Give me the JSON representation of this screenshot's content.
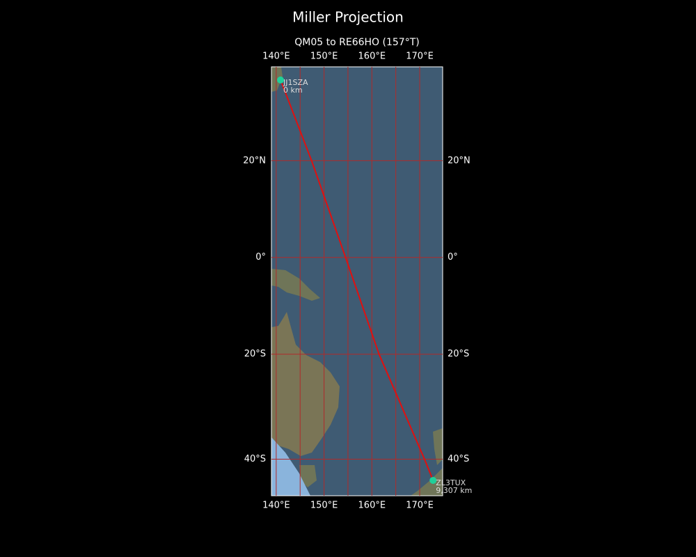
{
  "chart_data": {
    "type": "map",
    "title": "Miller Projection",
    "subtitle": "QM05 to RE66HO (157°T)",
    "projection": "miller",
    "xlim": [
      139,
      174.8
    ],
    "ylim": [
      -46.3,
      38
    ],
    "xticks": [
      {
        "value": 140,
        "label": "140°E"
      },
      {
        "value": 150,
        "label": "150°E"
      },
      {
        "value": 160,
        "label": "160°E"
      },
      {
        "value": 170,
        "label": "170°E"
      }
    ],
    "yticks": [
      {
        "value": 20,
        "label": "20°N"
      },
      {
        "value": 0,
        "label": "0°"
      },
      {
        "value": -20,
        "label": "20°S"
      },
      {
        "value": -40,
        "label": "40°S"
      }
    ],
    "xgrid": [
      140,
      145,
      150,
      155,
      160,
      165,
      170
    ],
    "grid_color": "#b02a2a",
    "route": {
      "color": "#e01010",
      "x": [
        140.9,
        147.4,
        154.5,
        161.5,
        171,
        172.8
      ],
      "values": [
        35.6,
        20,
        0,
        -20,
        -40,
        -43.7
      ]
    },
    "markers": [
      {
        "name": "JJ1SZA",
        "lon": 140.9,
        "lat": 35.6,
        "distance": 0,
        "distance_label": "0 km"
      },
      {
        "name": "ZL3TUX",
        "lon": 172.8,
        "lat": -43.7,
        "distance": 9307,
        "distance_label": "9,307 km"
      }
    ],
    "marker_color": "#1fd09a"
  }
}
